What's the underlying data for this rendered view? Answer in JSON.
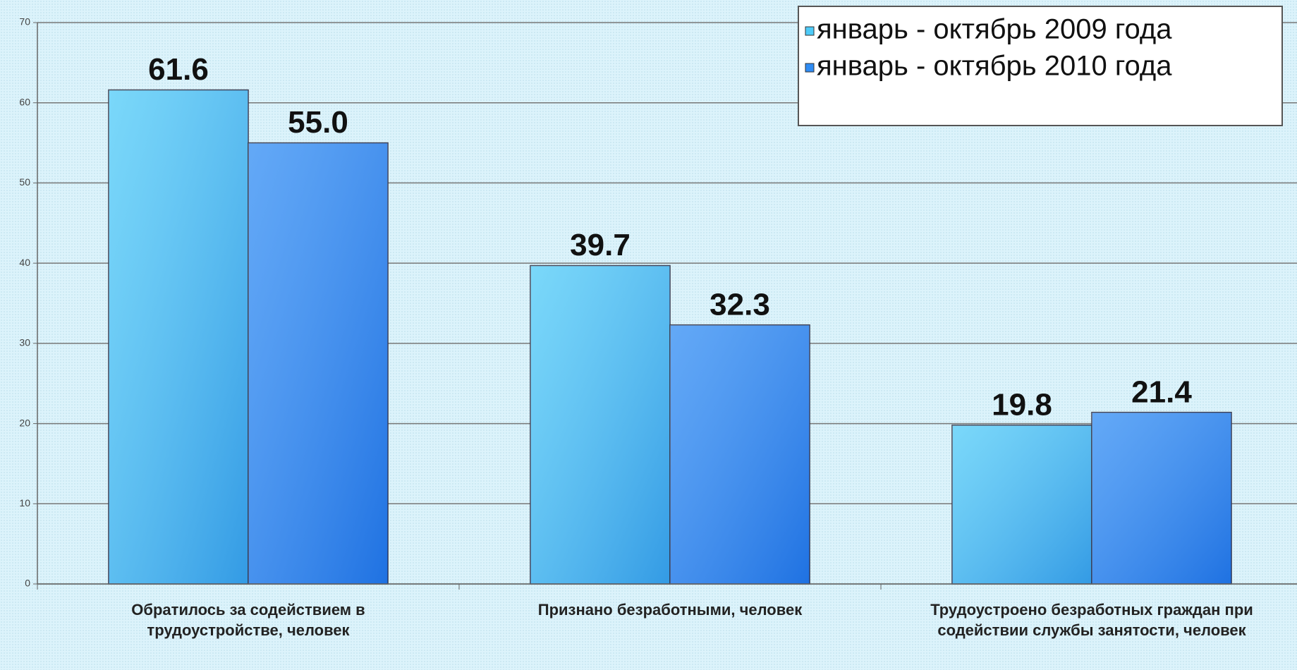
{
  "chart_data": {
    "type": "bar",
    "categories": [
      "Обратилось за содействием в трудоустройстве, человек",
      "Признано безработными, человек",
      "Трудоустроено безработных граждан при содействии службы занятости, человек"
    ],
    "series": [
      {
        "name": "январь - октябрь 2009 года",
        "color": "#4ecbf8",
        "values": [
          61.6,
          39.7,
          19.8
        ],
        "value_labels": [
          "61.6",
          "39.7",
          "19.8"
        ]
      },
      {
        "name": "январь - октябрь 2010 года",
        "color": "#2f8cf4",
        "values": [
          55,
          32.3,
          21.4
        ],
        "value_labels": [
          "55.0",
          "32.3",
          "21.4"
        ]
      }
    ],
    "ylim": [
      0,
      70
    ],
    "yticks": [
      0,
      10,
      20,
      30,
      40,
      50,
      60,
      70
    ],
    "grid": true,
    "legend": "top-right"
  }
}
